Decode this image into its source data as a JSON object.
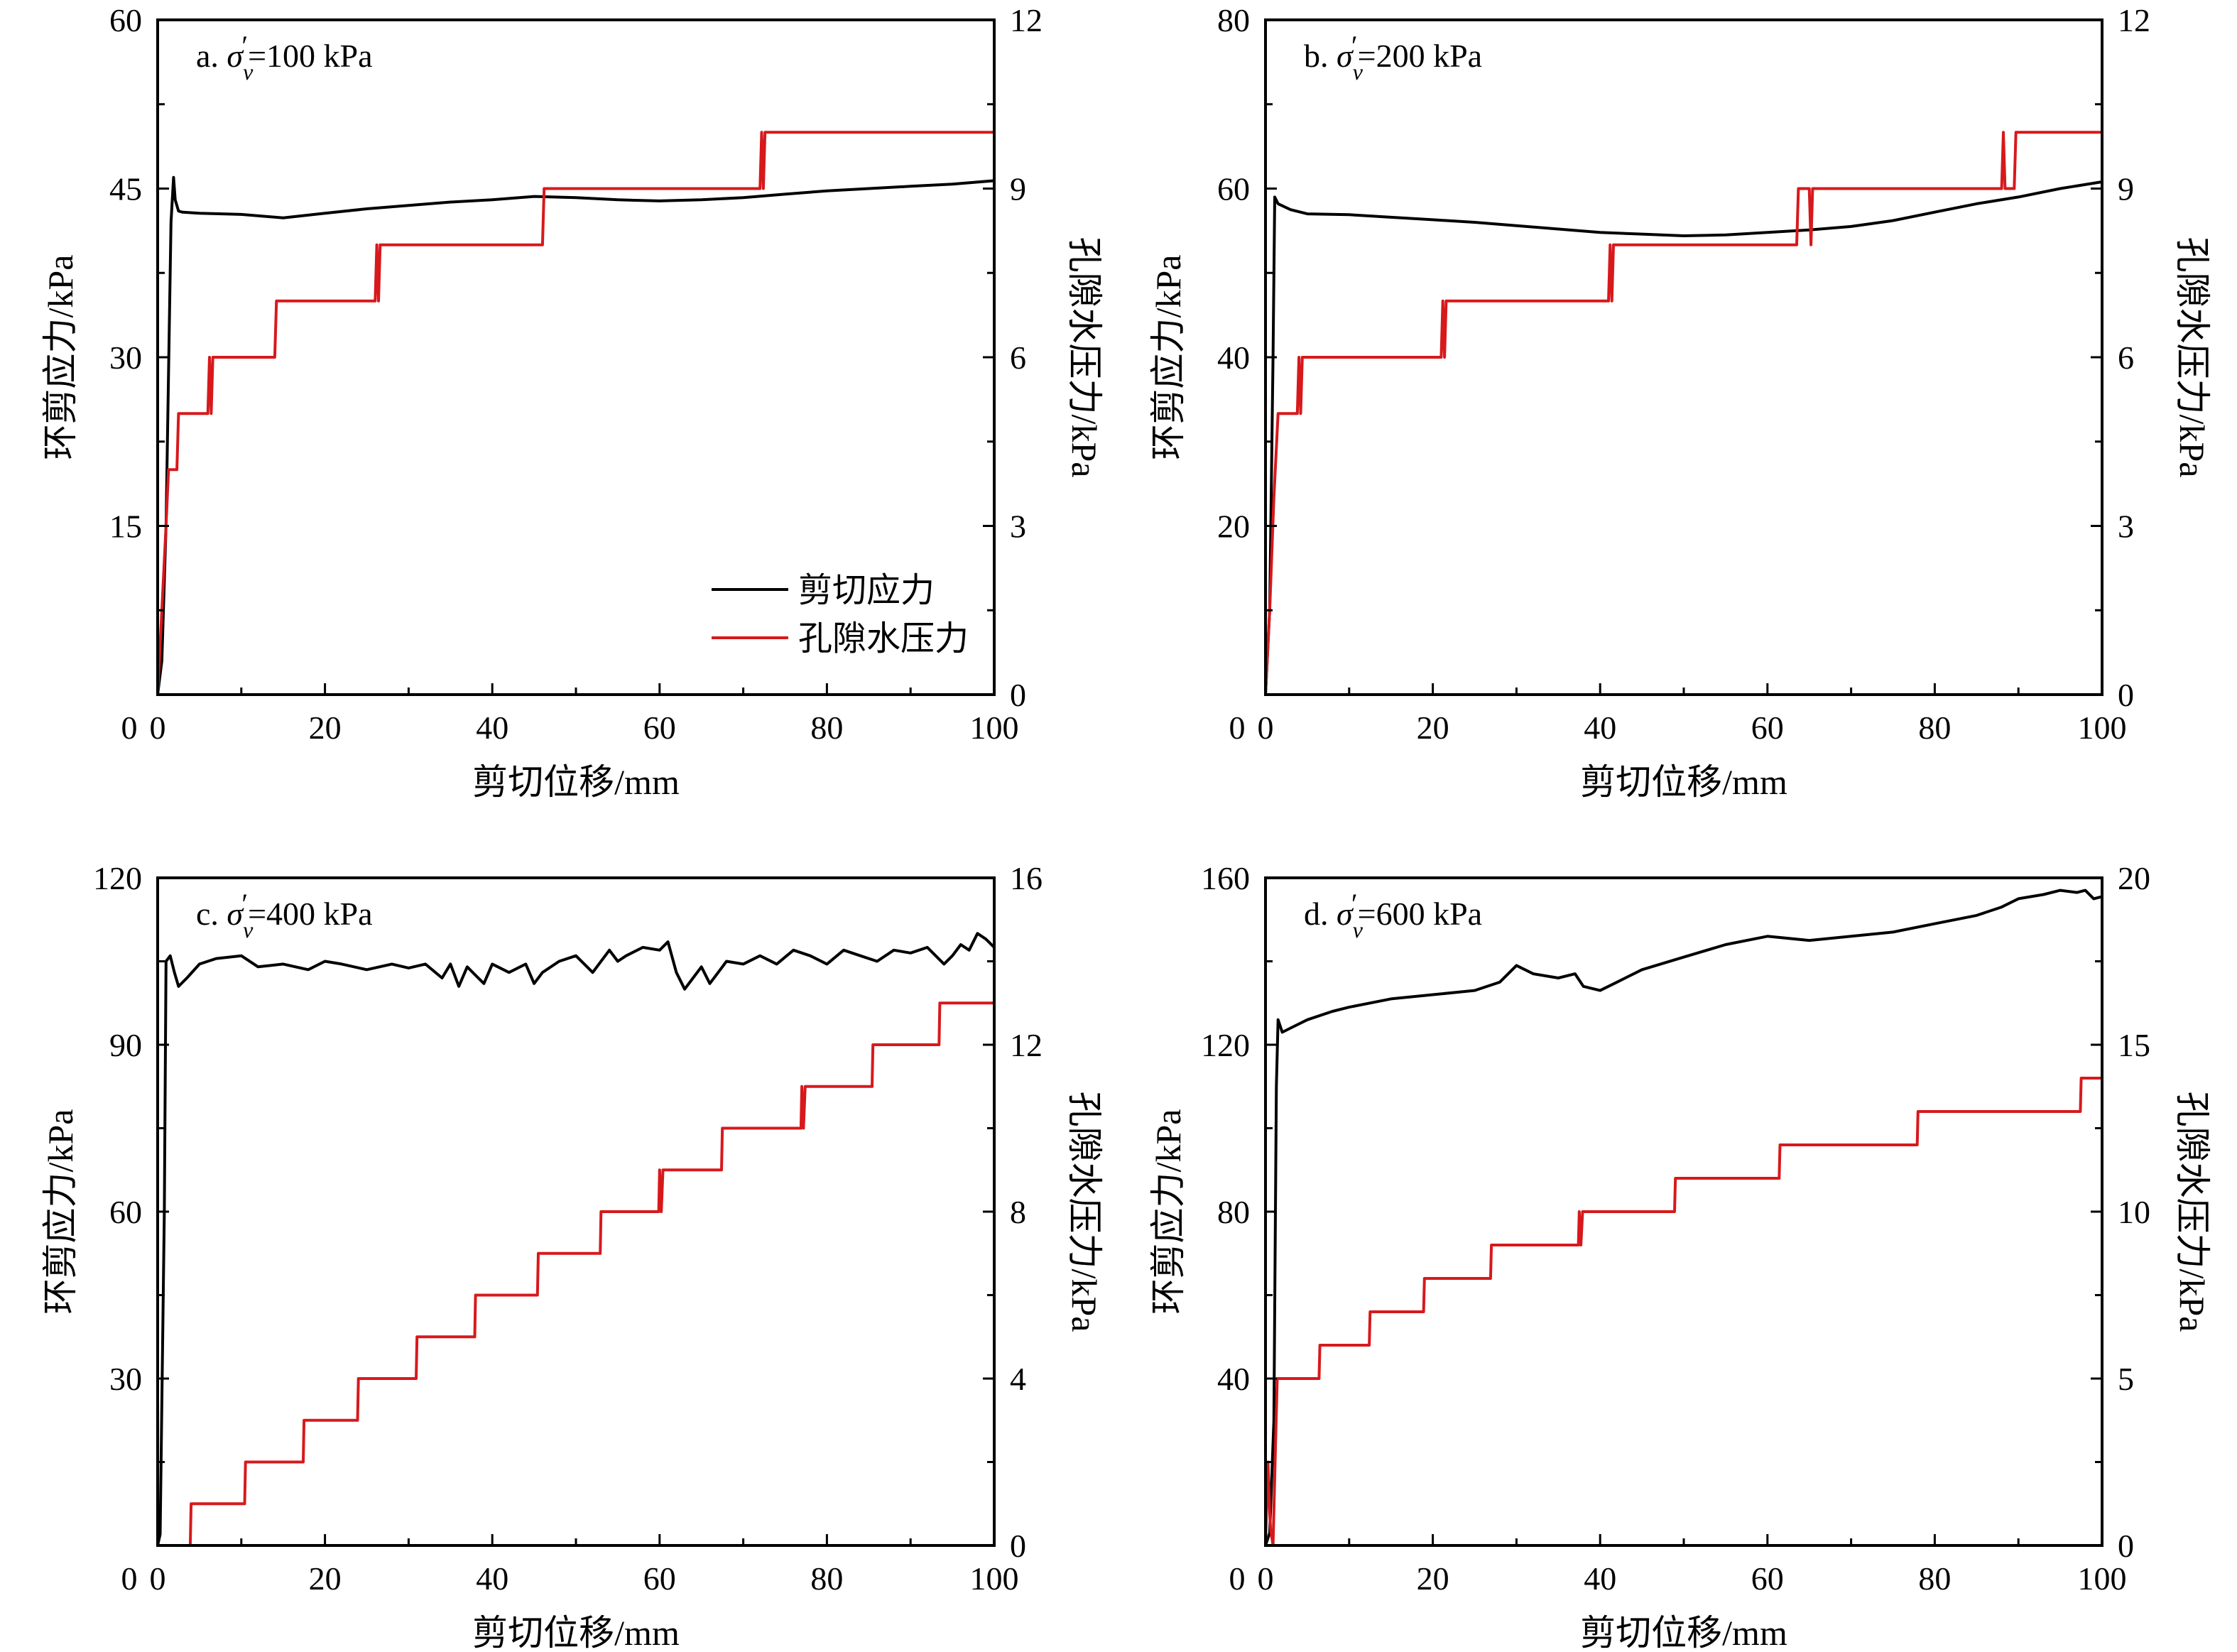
{
  "figure": {
    "legend": {
      "entries": [
        {
          "label": "剪切应力",
          "color": "#000000"
        },
        {
          "label": "孔隙水压力",
          "color": "#d7191c"
        }
      ]
    }
  },
  "chart_data": [
    {
      "type": "line",
      "panel": "a",
      "title": "a. σv′=100 kPa",
      "title_prefix": "a. ",
      "title_value": "=100 kPa",
      "xlabel": "剪切位移/mm",
      "ylabel": "环剪应力/kPa",
      "y2label": "孔隙水压力/kPa",
      "xlim": [
        0,
        100
      ],
      "ylim": [
        0,
        60
      ],
      "y2lim": [
        0,
        12
      ],
      "xticks": [
        0,
        20,
        40,
        60,
        80,
        100
      ],
      "yticks": [
        15,
        30,
        45,
        60
      ],
      "y2ticks": [
        0,
        3,
        6,
        9,
        12
      ],
      "legend_position": "lower-right",
      "series": [
        {
          "name": "剪切应力",
          "axis": "left",
          "color": "#000000",
          "x": [
            0,
            0.5,
            1,
            1.6,
            1.9,
            2.1,
            2.5,
            3,
            5,
            10,
            15,
            20,
            25,
            30,
            35,
            40,
            45,
            50,
            55,
            60,
            65,
            70,
            75,
            80,
            85,
            90,
            95,
            100
          ],
          "y": [
            0,
            3,
            15,
            42,
            46,
            44,
            43,
            42.9,
            42.8,
            42.7,
            42.4,
            42.8,
            43.2,
            43.5,
            43.8,
            44.0,
            44.3,
            44.2,
            44.0,
            43.9,
            44.0,
            44.2,
            44.5,
            44.8,
            45.0,
            45.2,
            45.4,
            45.7
          ]
        },
        {
          "name": "孔隙水压力",
          "axis": "right",
          "color": "#d7191c",
          "x": [
            0,
            0.5,
            1.0,
            1.3,
            1.5,
            2.3,
            2.5,
            6.0,
            6.2,
            6.4,
            6.6,
            14.0,
            14.2,
            26.0,
            26.2,
            26.4,
            26.6,
            46.0,
            46.2,
            72.0,
            72.2,
            72.4,
            72.6,
            100
          ],
          "y": [
            0,
            1.5,
            3.0,
            4.0,
            4.0,
            4.0,
            5.0,
            5.0,
            6.0,
            5.0,
            6.0,
            6.0,
            7.0,
            7.0,
            8.0,
            7.0,
            8.0,
            8.0,
            9.0,
            9.0,
            10.0,
            9.0,
            10.0,
            10.0
          ]
        }
      ]
    },
    {
      "type": "line",
      "panel": "b",
      "title": "b. σv′=200 kPa",
      "title_prefix": "b. ",
      "title_value": "=200 kPa",
      "xlabel": "剪切位移/mm",
      "ylabel": "环剪应力/kPa",
      "y2label": "孔隙水压力/kPa",
      "xlim": [
        0,
        100
      ],
      "ylim": [
        0,
        80
      ],
      "y2lim": [
        0,
        12
      ],
      "xticks": [
        0,
        20,
        40,
        60,
        80,
        100
      ],
      "yticks": [
        20,
        40,
        60,
        80
      ],
      "y2ticks": [
        0,
        3,
        6,
        9,
        12
      ],
      "series": [
        {
          "name": "剪切应力",
          "axis": "left",
          "color": "#000000",
          "x": [
            0,
            0.5,
            0.9,
            1.1,
            1.5,
            3,
            5,
            10,
            15,
            20,
            25,
            30,
            35,
            40,
            45,
            50,
            55,
            60,
            65,
            70,
            75,
            80,
            85,
            90,
            95,
            100
          ],
          "y": [
            0,
            10,
            40,
            59,
            58.2,
            57.5,
            57.0,
            56.9,
            56.6,
            56.3,
            56.0,
            55.6,
            55.2,
            54.8,
            54.6,
            54.4,
            54.5,
            54.8,
            55.1,
            55.5,
            56.2,
            57.2,
            58.2,
            59.0,
            60.0,
            60.8
          ]
        },
        {
          "name": "孔隙水压力",
          "axis": "right",
          "color": "#d7191c",
          "x": [
            0,
            0.5,
            1.0,
            1.5,
            3.8,
            4.0,
            4.2,
            4.4,
            21.0,
            21.2,
            21.4,
            21.6,
            41.0,
            41.2,
            41.4,
            41.6,
            63.5,
            63.7,
            65.0,
            65.2,
            65.4,
            88.0,
            88.2,
            88.4,
            89.5,
            89.7,
            100
          ],
          "y": [
            0,
            1.5,
            3.5,
            5.0,
            5.0,
            6.0,
            5.0,
            6.0,
            6.0,
            7.0,
            6.0,
            7.0,
            7.0,
            8.0,
            7.0,
            8.0,
            8.0,
            9.0,
            9.0,
            8.0,
            9.0,
            9.0,
            10.0,
            9.0,
            9.0,
            10.0,
            10.0
          ]
        }
      ]
    },
    {
      "type": "line",
      "panel": "c",
      "title": "c. σv′=400 kPa",
      "title_prefix": "c. ",
      "title_value": "=400 kPa",
      "xlabel": "剪切位移/mm",
      "ylabel": "环剪应力/kPa",
      "y2label": "孔隙水压力/kPa",
      "xlim": [
        0,
        100
      ],
      "ylim": [
        0,
        120
      ],
      "y2lim": [
        0,
        16
      ],
      "xticks": [
        0,
        20,
        40,
        60,
        80,
        100
      ],
      "yticks": [
        30,
        60,
        90,
        120
      ],
      "y2ticks": [
        0,
        4,
        8,
        12,
        16
      ],
      "series": [
        {
          "name": "剪切应力",
          "axis": "left",
          "color": "#000000",
          "x": [
            0,
            0.3,
            0.8,
            1.0,
            1.5,
            2.0,
            2.5,
            3.5,
            5,
            7,
            10,
            12,
            15,
            18,
            20,
            22,
            25,
            28,
            30,
            32,
            34,
            35,
            36,
            37,
            38,
            39,
            40,
            42,
            44,
            45,
            46,
            48,
            50,
            52,
            54,
            55,
            56,
            58,
            60,
            61,
            62,
            63,
            64,
            65,
            66,
            67,
            68,
            70,
            72,
            74,
            76,
            78,
            80,
            82,
            84,
            86,
            88,
            90,
            92,
            94,
            95,
            96,
            97,
            98,
            99,
            100
          ],
          "y": [
            0,
            2,
            60,
            105,
            106,
            103,
            100.5,
            102,
            104.5,
            105.5,
            106,
            104,
            104.5,
            103.5,
            105,
            104.5,
            103.5,
            104.5,
            103.8,
            104.5,
            102,
            104.5,
            100.5,
            104,
            102.5,
            101,
            104.5,
            103,
            104.5,
            101,
            103,
            105,
            106,
            103,
            107,
            105,
            106,
            107.5,
            107,
            108.5,
            103,
            100,
            102,
            104,
            101,
            103,
            105,
            104.5,
            106,
            104.5,
            107,
            106,
            104.5,
            107,
            106,
            105,
            107,
            106.5,
            107.5,
            104.5,
            106,
            108,
            107,
            110,
            109,
            107.5
          ]
        },
        {
          "name": "孔隙水压力",
          "axis": "right",
          "color": "#d7191c",
          "x": [
            0,
            3.9,
            4.0,
            10.4,
            10.5,
            17.4,
            17.5,
            23.9,
            24.0,
            30.9,
            31.0,
            37.9,
            38.0,
            45.4,
            45.5,
            52.9,
            53.0,
            59.9,
            60.0,
            60.2,
            60.4,
            67.4,
            67.5,
            76.9,
            77.0,
            77.2,
            77.4,
            85.4,
            85.5,
            93.4,
            93.5,
            100
          ],
          "y": [
            0,
            0,
            1,
            1,
            2,
            2,
            3,
            3,
            4,
            4,
            5,
            5,
            6,
            6,
            7,
            7,
            8,
            8,
            9,
            8,
            9,
            9,
            10,
            10,
            11,
            10,
            11,
            11,
            12,
            12,
            13,
            13
          ]
        }
      ]
    },
    {
      "type": "line",
      "panel": "d",
      "title": "d. σv′=600 kPa",
      "title_prefix": "d. ",
      "title_value": "=600 kPa",
      "xlabel": "剪切位移/mm",
      "ylabel": "环剪应力/kPa",
      "y2label": "孔隙水压力/kPa",
      "xlim": [
        0,
        100
      ],
      "ylim": [
        0,
        160
      ],
      "y2lim": [
        0,
        20
      ],
      "xticks": [
        0,
        20,
        40,
        60,
        80,
        100
      ],
      "yticks": [
        40,
        80,
        120,
        160
      ],
      "y2ticks": [
        0,
        5,
        10,
        15,
        20
      ],
      "series": [
        {
          "name": "剪切应力",
          "axis": "left",
          "color": "#000000",
          "x": [
            0,
            0.5,
            1.0,
            1.3,
            1.5,
            2.0,
            3,
            5,
            8,
            10,
            15,
            20,
            25,
            28,
            30,
            32,
            35,
            37,
            38,
            40,
            42,
            45,
            50,
            55,
            60,
            65,
            70,
            75,
            80,
            85,
            88,
            90,
            93,
            95,
            97,
            98,
            99,
            100
          ],
          "y": [
            0,
            3,
            30,
            110,
            126,
            123,
            124,
            126,
            128,
            129,
            131,
            132,
            133,
            135,
            139,
            137,
            136,
            137,
            134,
            133,
            135,
            138,
            141,
            144,
            146,
            145,
            146,
            147,
            149,
            151,
            153,
            155,
            156,
            157,
            156.5,
            157,
            155,
            155.5
          ]
        },
        {
          "name": "孔隙水压力",
          "axis": "right",
          "color": "#d7191c",
          "x": [
            0,
            0.3,
            0.5,
            0.6,
            0.9,
            1.2,
            1.4,
            1.6,
            6.4,
            6.5,
            12.4,
            12.5,
            18.9,
            19.0,
            26.9,
            27.0,
            37.4,
            37.5,
            37.7,
            37.9,
            48.9,
            49.0,
            61.4,
            61.5,
            77.9,
            78.0,
            97.4,
            97.5,
            100
          ],
          "y": [
            0,
            2.5,
            1.0,
            0.5,
            0.0,
            3.0,
            5.0,
            5.0,
            5.0,
            6.0,
            6.0,
            7.0,
            7.0,
            8.0,
            8.0,
            9.0,
            9.0,
            10.0,
            9.0,
            10.0,
            10.0,
            11.0,
            11.0,
            12.0,
            12.0,
            13.0,
            13.0,
            14.0,
            14.0
          ]
        }
      ]
    }
  ]
}
